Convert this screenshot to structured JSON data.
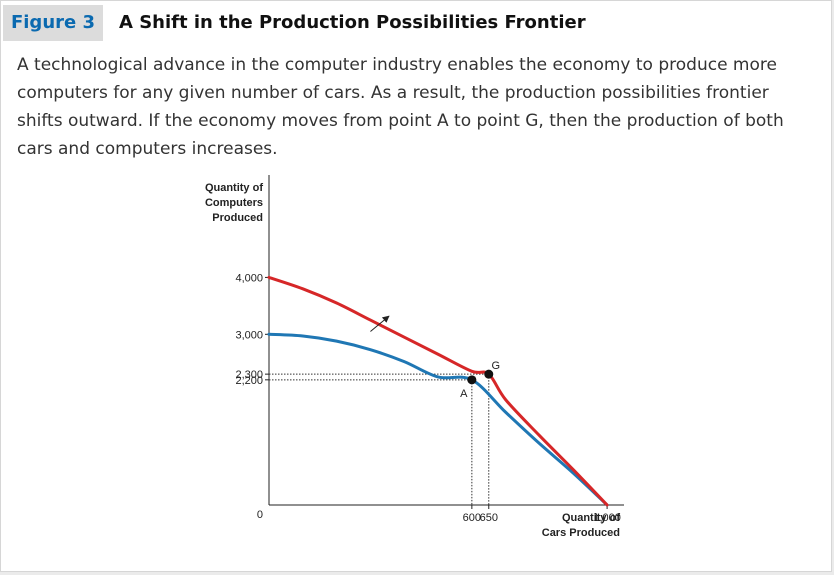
{
  "figure": {
    "label": "Figure 3",
    "title": "A Shift in the Production Possibilities Frontier",
    "caption": "A technological advance in the computer industry enables the economy to produce more computers for any given number of cars. As a result, the production possibilities frontier shifts outward. If the economy moves from point A to point G, then the production of both cars and computers increases."
  },
  "chart_data": {
    "type": "line",
    "xlabel": [
      "Quantity of",
      "Cars Produced"
    ],
    "ylabel": [
      "Quantity of",
      "Computers",
      "Produced"
    ],
    "xlim": [
      0,
      1050
    ],
    "ylim": [
      0,
      5800
    ],
    "x_ticks": [
      {
        "value": 600,
        "label": "600"
      },
      {
        "value": 650,
        "label": "650"
      },
      {
        "value": 1000,
        "label": "1,000"
      }
    ],
    "y_ticks": [
      {
        "value": 4000,
        "label": "4,000"
      },
      {
        "value": 3000,
        "label": "3,000"
      },
      {
        "value": 2300,
        "label": "2,300"
      },
      {
        "value": 2200,
        "label": "2,200"
      },
      {
        "value": 0,
        "label": "0"
      }
    ],
    "series": [
      {
        "color": "#1f77b4",
        "points": [
          [
            0,
            3000
          ],
          [
            100,
            2970
          ],
          [
            200,
            2880
          ],
          [
            300,
            2730
          ],
          [
            400,
            2520
          ],
          [
            500,
            2250
          ],
          [
            600,
            2200
          ],
          [
            700,
            1630
          ],
          [
            800,
            1080
          ],
          [
            900,
            560
          ],
          [
            1000,
            0
          ]
        ]
      },
      {
        "color": "#d62728",
        "points": [
          [
            0,
            4000
          ],
          [
            100,
            3800
          ],
          [
            200,
            3550
          ],
          [
            300,
            3250
          ],
          [
            400,
            2950
          ],
          [
            500,
            2650
          ],
          [
            600,
            2350
          ],
          [
            650,
            2300
          ],
          [
            700,
            1850
          ],
          [
            800,
            1220
          ],
          [
            900,
            620
          ],
          [
            1000,
            0
          ]
        ]
      }
    ],
    "points": [
      {
        "name": "A",
        "x": 600,
        "y": 2200
      },
      {
        "name": "G",
        "x": 650,
        "y": 2300
      }
    ],
    "arrow": {
      "from": [
        300,
        3050
      ],
      "to": [
        355,
        3320
      ]
    }
  },
  "colors": {
    "inner_frontier": "#1f77b4",
    "outer_frontier": "#d62728",
    "figure_label": "#0b6ab0"
  }
}
